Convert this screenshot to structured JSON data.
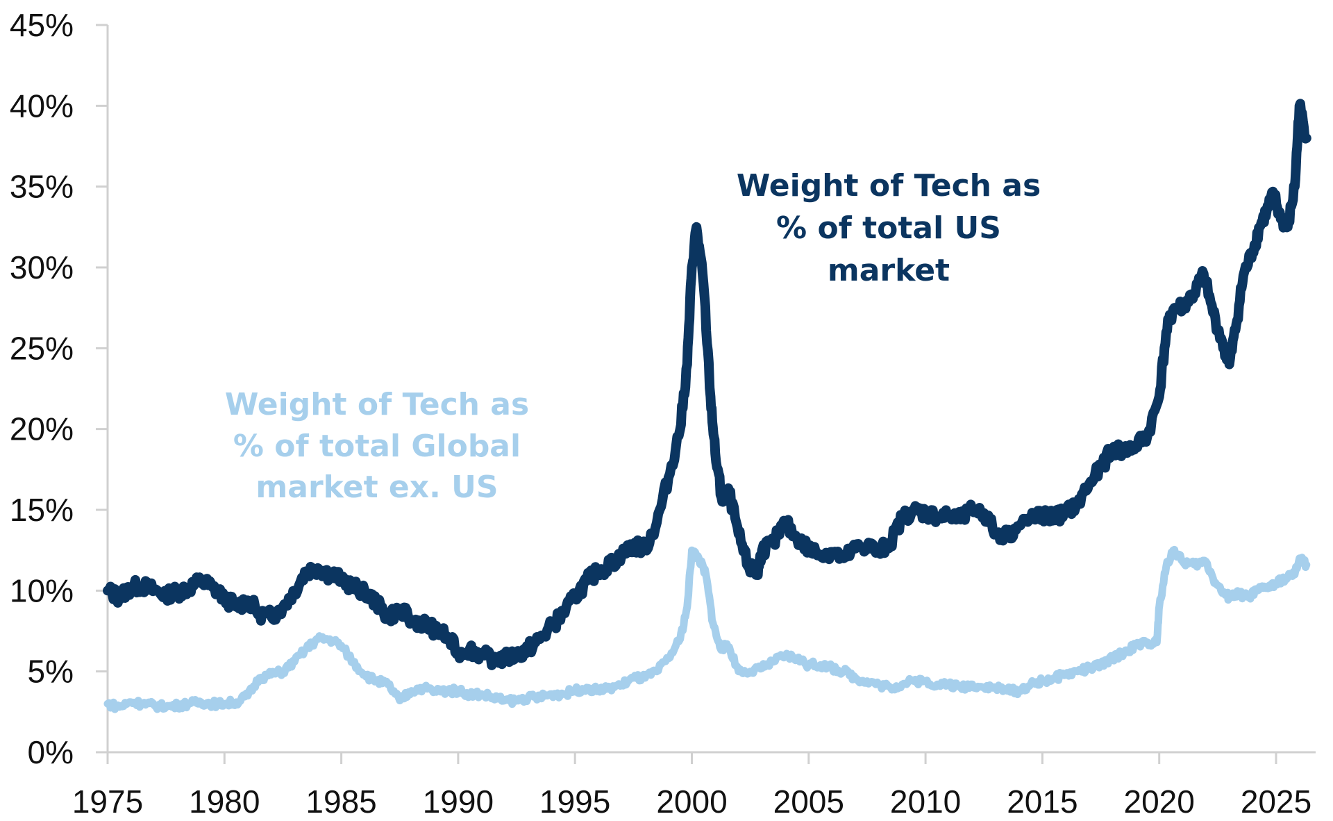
{
  "chart_data": {
    "type": "line",
    "title": "",
    "xlabel": "",
    "ylabel": "",
    "xlim": [
      1975,
      2026.7
    ],
    "ylim": [
      0,
      45
    ],
    "grid": false,
    "legend": "none (inline annotations)",
    "x_ticks": [
      1975,
      1980,
      1985,
      1990,
      1995,
      2000,
      2005,
      2010,
      2015,
      2020,
      2025
    ],
    "x_tick_labels": [
      "1975",
      "1980",
      "1985",
      "1990",
      "1995",
      "2000",
      "2005",
      "2010",
      "2015",
      "2020",
      "2025"
    ],
    "y_ticks": [
      0,
      5,
      10,
      15,
      20,
      25,
      30,
      35,
      40,
      45
    ],
    "y_tick_labels": [
      "0%",
      "5%",
      "10%",
      "15%",
      "20%",
      "25%",
      "30%",
      "35%",
      "40%",
      "45%"
    ],
    "series": [
      {
        "name": "Weight of Tech as % of total US market",
        "color": "#0b3560",
        "x": [
          1975.0,
          1975.5,
          1976.0,
          1976.5,
          1977.0,
          1977.5,
          1978.0,
          1978.5,
          1979.0,
          1979.5,
          1980.0,
          1980.5,
          1981.0,
          1981.5,
          1982.0,
          1982.5,
          1983.0,
          1983.5,
          1984.0,
          1984.5,
          1985.0,
          1985.5,
          1986.0,
          1986.5,
          1987.0,
          1987.5,
          1988.0,
          1988.5,
          1989.0,
          1989.5,
          1990.0,
          1990.5,
          1991.0,
          1991.5,
          1992.0,
          1992.5,
          1993.0,
          1993.5,
          1994.0,
          1994.5,
          1995.0,
          1995.5,
          1996.0,
          1996.5,
          1997.0,
          1997.5,
          1998.0,
          1998.5,
          1999.0,
          1999.5,
          1999.8,
          2000.0,
          2000.2,
          2000.5,
          2000.8,
          2001.0,
          2001.3,
          2001.6,
          2002.0,
          2002.4,
          2002.8,
          2003.0,
          2003.5,
          2004.0,
          2004.5,
          2005.0,
          2005.5,
          2006.0,
          2006.5,
          2007.0,
          2007.5,
          2008.0,
          2008.5,
          2009.0,
          2009.5,
          2010.0,
          2010.5,
          2011.0,
          2011.5,
          2012.0,
          2012.5,
          2013.0,
          2013.5,
          2014.0,
          2014.5,
          2015.0,
          2015.5,
          2016.0,
          2016.5,
          2017.0,
          2017.5,
          2018.0,
          2018.5,
          2019.0,
          2019.5,
          2020.0,
          2020.3,
          2020.6,
          2021.0,
          2021.5,
          2021.9,
          2022.3,
          2022.7,
          2023.0,
          2023.3,
          2023.6,
          2024.0,
          2024.3,
          2024.6,
          2024.9,
          2025.2,
          2025.5,
          2025.8,
          2026.0,
          2026.3
        ],
        "values": [
          10.0,
          9.6,
          10.2,
          10.3,
          10.0,
          9.8,
          9.9,
          10.2,
          10.6,
          10.2,
          9.6,
          9.0,
          9.4,
          8.6,
          8.4,
          9.0,
          10.0,
          11.2,
          11.4,
          11.0,
          10.8,
          10.2,
          10.0,
          9.2,
          8.4,
          8.8,
          8.2,
          8.0,
          7.6,
          7.2,
          6.2,
          6.4,
          6.0,
          5.8,
          5.8,
          6.0,
          6.4,
          7.0,
          7.8,
          8.6,
          9.6,
          10.6,
          11.2,
          11.6,
          12.2,
          12.8,
          12.6,
          14.2,
          17.0,
          20.0,
          24.0,
          30.0,
          32.5,
          29.0,
          22.0,
          18.5,
          15.5,
          16.0,
          13.5,
          11.5,
          11.0,
          12.5,
          13.0,
          14.2,
          13.2,
          12.6,
          12.2,
          12.4,
          12.0,
          12.6,
          12.8,
          12.4,
          13.0,
          14.5,
          15.0,
          14.8,
          14.6,
          14.6,
          14.4,
          15.0,
          14.8,
          13.6,
          13.4,
          14.0,
          14.4,
          14.6,
          14.6,
          14.8,
          15.4,
          16.6,
          17.6,
          18.8,
          18.6,
          19.0,
          19.6,
          22.0,
          26.0,
          27.4,
          27.6,
          28.4,
          29.6,
          27.2,
          25.4,
          24.0,
          26.5,
          29.5,
          31.0,
          32.5,
          33.5,
          34.5,
          33.0,
          32.5,
          35.0,
          40.0,
          38.0
        ],
        "annotation": "Weight of Tech as % of total US market"
      },
      {
        "name": "Weight of Tech as % of total Global market ex. US",
        "color": "#a6cfec",
        "x": [
          1975.0,
          1975.5,
          1976.0,
          1976.5,
          1977.0,
          1977.5,
          1978.0,
          1978.5,
          1979.0,
          1979.5,
          1980.0,
          1980.5,
          1981.0,
          1981.5,
          1982.0,
          1982.5,
          1983.0,
          1983.5,
          1984.0,
          1984.5,
          1985.0,
          1985.5,
          1986.0,
          1986.5,
          1987.0,
          1987.5,
          1988.0,
          1988.5,
          1989.0,
          1989.5,
          1990.0,
          1990.5,
          1991.0,
          1991.5,
          1992.0,
          1992.5,
          1993.0,
          1993.5,
          1994.0,
          1994.5,
          1995.0,
          1995.5,
          1996.0,
          1996.5,
          1997.0,
          1997.5,
          1998.0,
          1998.5,
          1999.0,
          1999.5,
          1999.8,
          2000.0,
          2000.3,
          2000.6,
          2000.9,
          2001.2,
          2001.6,
          2002.0,
          2002.5,
          2003.0,
          2003.5,
          2004.0,
          2004.5,
          2005.0,
          2005.5,
          2006.0,
          2006.5,
          2007.0,
          2007.5,
          2008.0,
          2008.5,
          2009.0,
          2009.5,
          2010.0,
          2010.5,
          2011.0,
          2011.5,
          2012.0,
          2012.5,
          2013.0,
          2013.5,
          2014.0,
          2014.5,
          2015.0,
          2015.5,
          2016.0,
          2016.5,
          2017.0,
          2017.5,
          2018.0,
          2018.5,
          2019.0,
          2019.5,
          2019.9,
          2020.0,
          2020.3,
          2020.6,
          2021.0,
          2021.5,
          2022.0,
          2022.4,
          2022.8,
          2023.0,
          2023.4,
          2023.8,
          2024.2,
          2024.6,
          2025.0,
          2025.4,
          2025.8,
          2026.0,
          2026.3
        ],
        "values": [
          3.0,
          2.8,
          3.1,
          3.0,
          2.9,
          2.8,
          2.9,
          3.0,
          3.1,
          3.0,
          3.0,
          3.1,
          3.5,
          4.6,
          4.8,
          5.0,
          5.6,
          6.4,
          7.0,
          7.0,
          6.6,
          5.6,
          4.8,
          4.4,
          4.2,
          3.2,
          3.8,
          4.0,
          3.8,
          3.8,
          3.8,
          3.6,
          3.6,
          3.4,
          3.2,
          3.2,
          3.4,
          3.4,
          3.6,
          3.6,
          3.8,
          4.0,
          3.8,
          4.0,
          4.2,
          4.6,
          4.6,
          5.0,
          5.8,
          7.0,
          9.0,
          12.5,
          12.0,
          11.0,
          8.0,
          6.5,
          6.5,
          5.0,
          5.0,
          5.2,
          5.6,
          6.0,
          5.8,
          5.4,
          5.4,
          5.2,
          5.0,
          4.6,
          4.4,
          4.2,
          4.0,
          4.2,
          4.4,
          4.4,
          4.2,
          4.2,
          4.0,
          4.2,
          4.0,
          4.0,
          3.8,
          3.8,
          4.2,
          4.4,
          4.6,
          4.8,
          5.0,
          5.2,
          5.4,
          5.8,
          6.2,
          6.6,
          6.8,
          6.8,
          9.0,
          11.5,
          12.5,
          11.8,
          11.6,
          11.8,
          10.5,
          9.8,
          9.6,
          9.8,
          9.6,
          10.0,
          10.2,
          10.4,
          10.8,
          11.0,
          12.0,
          11.6
        ],
        "annotation": "Weight of Tech as % of total Global market ex. US"
      }
    ]
  },
  "annotations": {
    "us": [
      "Weight of Tech as",
      "% of total US",
      "market"
    ],
    "global": [
      "Weight of Tech as",
      "%  of total Global",
      "market ex. US"
    ]
  },
  "colors": {
    "us_series": "#0b3560",
    "global_series": "#a6cfec",
    "axis": "#d0d0d0",
    "tick_text": "#111111"
  }
}
